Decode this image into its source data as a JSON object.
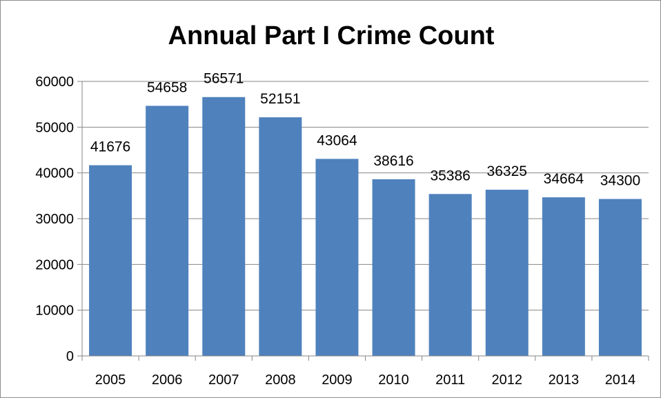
{
  "chart_data": {
    "type": "bar",
    "title": "Annual Part I Crime Count",
    "xlabel": "",
    "ylabel": "",
    "categories": [
      "2005",
      "2006",
      "2007",
      "2008",
      "2009",
      "2010",
      "2011",
      "2012",
      "2013",
      "2014"
    ],
    "values": [
      41676,
      54658,
      56571,
      52151,
      43064,
      38616,
      35386,
      36325,
      34664,
      34300
    ],
    "ylim": [
      0,
      60000
    ],
    "yticks": [
      0,
      10000,
      20000,
      30000,
      40000,
      50000,
      60000
    ],
    "grid": true,
    "legend": "none",
    "colors": {
      "bar": "#4f81bd",
      "grid": "#868686",
      "axis": "#868686"
    }
  }
}
